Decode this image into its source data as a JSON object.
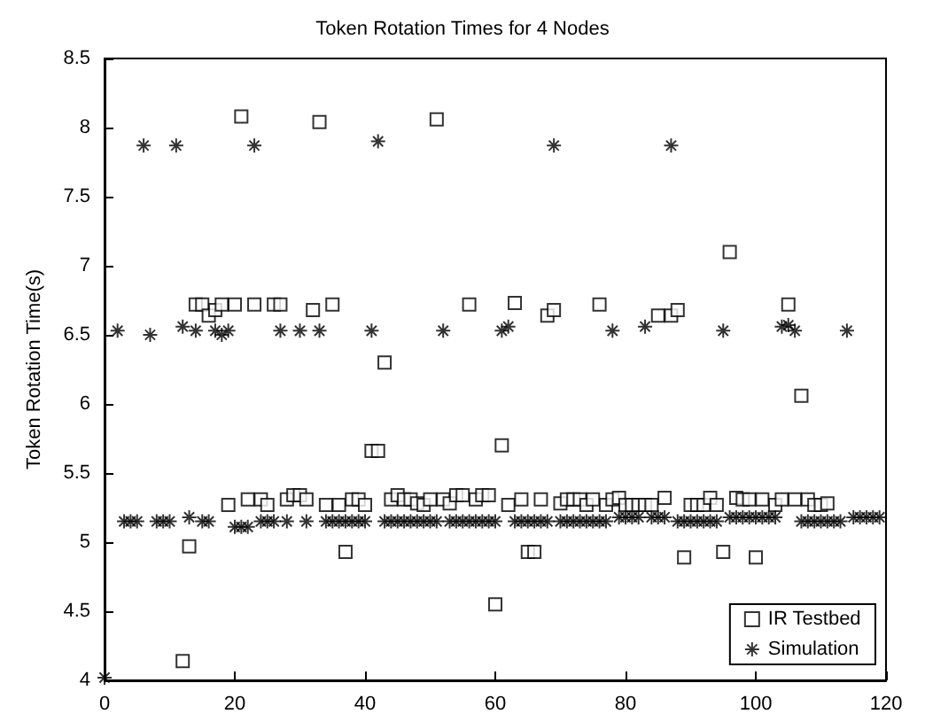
{
  "chart_data": {
    "type": "scatter",
    "title": "Token Rotation Times for 4 Nodes",
    "ylabel": "Token Rotation Time(s)",
    "xlim": [
      0,
      120
    ],
    "xticks": [
      0,
      20,
      40,
      60,
      80,
      100,
      120
    ],
    "ylim": [
      4,
      8.5
    ],
    "yticks": [
      4,
      4.5,
      5,
      5.5,
      6,
      6.5,
      7,
      7.5,
      8,
      8.5
    ],
    "legend": "bottom right",
    "series": [
      {
        "name": "IR Testbed",
        "color": "#000000",
        "marker": "square",
        "x": [
          12,
          13,
          14,
          15,
          16,
          17,
          18,
          19,
          20,
          21,
          22,
          23,
          24,
          25,
          26,
          27,
          28,
          29,
          30,
          31,
          32,
          33,
          34,
          35,
          36,
          37,
          38,
          39,
          40,
          41,
          42,
          43,
          44,
          45,
          46,
          47,
          48,
          49,
          50,
          51,
          52,
          53,
          54,
          55,
          56,
          57,
          58,
          59,
          60,
          61,
          62,
          63,
          64,
          65,
          66,
          67,
          68,
          69,
          70,
          71,
          72,
          73,
          74,
          75,
          76,
          77,
          78,
          79,
          80,
          81,
          82,
          83,
          84,
          85,
          86,
          87,
          88,
          89,
          90,
          91,
          92,
          93,
          94,
          95,
          96,
          97,
          98,
          99,
          100,
          101,
          103,
          104,
          105,
          106,
          107,
          108,
          109,
          110,
          111
        ],
        "values": [
          4.14,
          4.97,
          6.72,
          6.72,
          6.64,
          6.68,
          6.72,
          5.27,
          6.72,
          8.08,
          5.31,
          6.72,
          5.31,
          5.27,
          6.72,
          6.72,
          5.31,
          5.34,
          5.34,
          5.31,
          6.68,
          8.04,
          5.27,
          6.72,
          5.27,
          4.93,
          5.31,
          5.31,
          5.27,
          5.66,
          5.66,
          6.3,
          5.31,
          5.34,
          5.31,
          5.31,
          5.28,
          5.27,
          5.31,
          8.06,
          5.31,
          5.28,
          5.34,
          5.34,
          6.72,
          5.31,
          5.34,
          5.34,
          4.55,
          5.7,
          5.27,
          6.73,
          5.31,
          4.93,
          4.93,
          5.31,
          6.64,
          6.68,
          5.28,
          5.31,
          5.31,
          5.31,
          5.27,
          5.31,
          6.72,
          5.27,
          5.31,
          5.32,
          5.27,
          5.27,
          5.27,
          5.27,
          5.27,
          6.64,
          5.32,
          6.64,
          6.68,
          4.89,
          5.27,
          5.27,
          5.27,
          5.32,
          5.27,
          4.93,
          7.1,
          5.32,
          5.31,
          5.31,
          4.89,
          5.31,
          5.27,
          5.31,
          6.72,
          5.31,
          6.06,
          5.31,
          5.27,
          5.27,
          5.28
        ]
      },
      {
        "name": "Simulation",
        "color": "#000000",
        "marker": "cross",
        "x": [
          0,
          2,
          3,
          4,
          5,
          6,
          7,
          8,
          9,
          10,
          11,
          12,
          13,
          14,
          15,
          16,
          17,
          18,
          19,
          20,
          21,
          22,
          23,
          24,
          25,
          26,
          27,
          28,
          30,
          31,
          33,
          34,
          35,
          36,
          37,
          38,
          39,
          40,
          41,
          42,
          43,
          44,
          45,
          46,
          47,
          48,
          49,
          50,
          51,
          52,
          53,
          54,
          55,
          56,
          57,
          58,
          59,
          60,
          61,
          62,
          63,
          64,
          65,
          66,
          67,
          68,
          69,
          70,
          71,
          72,
          73,
          74,
          75,
          76,
          77,
          78,
          79,
          80,
          81,
          82,
          83,
          84,
          85,
          86,
          87,
          88,
          89,
          90,
          91,
          92,
          93,
          94,
          95,
          96,
          97,
          98,
          99,
          100,
          101,
          102,
          103,
          104,
          105,
          106,
          107,
          108,
          109,
          110,
          111,
          112,
          113,
          114,
          115,
          116,
          117,
          118,
          119
        ],
        "values": [
          4.02,
          6.53,
          5.15,
          5.15,
          5.15,
          7.87,
          6.5,
          5.15,
          5.15,
          5.15,
          7.87,
          6.56,
          5.18,
          6.53,
          5.15,
          5.15,
          6.53,
          6.5,
          6.53,
          5.11,
          5.11,
          5.11,
          7.87,
          5.15,
          5.15,
          5.15,
          6.53,
          5.15,
          6.53,
          5.15,
          6.53,
          5.15,
          5.15,
          5.15,
          5.15,
          5.15,
          5.15,
          5.15,
          6.53,
          7.9,
          5.15,
          5.15,
          5.15,
          5.15,
          5.15,
          5.15,
          5.15,
          5.15,
          5.15,
          6.53,
          5.15,
          5.15,
          5.15,
          5.15,
          5.15,
          5.15,
          5.15,
          5.15,
          6.53,
          6.56,
          5.15,
          5.15,
          5.15,
          5.15,
          5.15,
          5.15,
          7.87,
          5.15,
          5.15,
          5.15,
          5.15,
          5.15,
          5.15,
          5.15,
          5.15,
          6.53,
          5.18,
          5.18,
          5.18,
          5.18,
          6.56,
          5.18,
          5.18,
          5.18,
          7.87,
          5.15,
          5.15,
          5.15,
          5.15,
          5.15,
          5.15,
          5.15,
          6.53,
          5.18,
          5.18,
          5.18,
          5.18,
          5.18,
          5.18,
          5.18,
          5.18,
          6.56,
          6.57,
          6.53,
          5.15,
          5.15,
          5.15,
          5.15,
          5.15,
          5.15,
          5.15,
          6.53,
          5.18,
          5.18,
          5.18,
          5.18,
          5.18
        ]
      }
    ]
  }
}
